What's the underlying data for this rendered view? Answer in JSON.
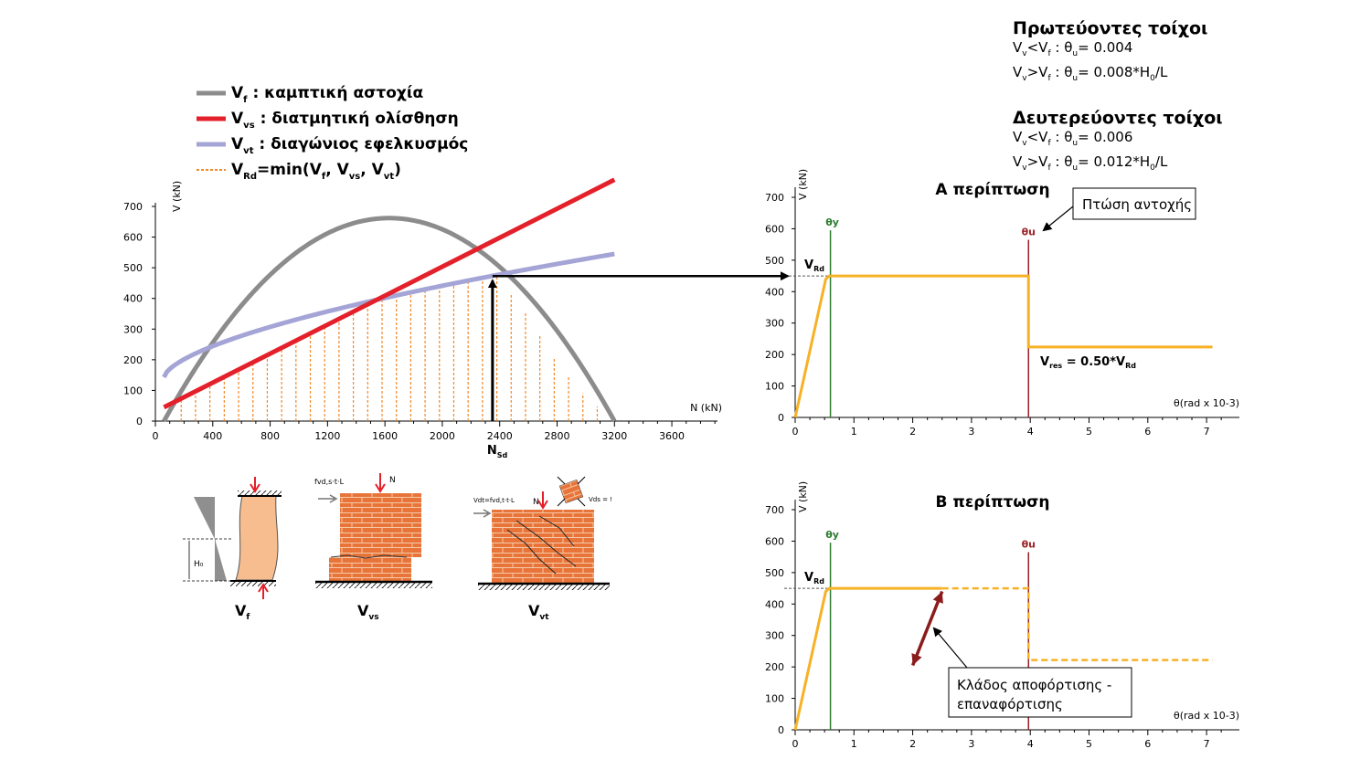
{
  "rules": {
    "primary": {
      "title": "Πρωτεύοντες τοίχοι",
      "rule1": "Vv<Vf : θu= 0.004",
      "rule2": "Vv>Vf : θu= 0.008*H0/L"
    },
    "secondary": {
      "title": "Δευτερεύοντες τοίχοι",
      "rule1": "Vv<Vf : θu= 0.006",
      "rule2": "Vv>Vf : θu= 0.012*H0/L"
    }
  },
  "legend": {
    "items": [
      {
        "symbol": "Vf",
        "text": " : καμπτική αστοχία",
        "color": "#8c8c8c"
      },
      {
        "symbol": "Vvs",
        "text": ": διατμητική ολίσθηση",
        "color": "#e4202a"
      },
      {
        "symbol": "Vvt",
        "text": ": διαγώνιος εφελκυσμός",
        "color": "#a4a4d6"
      },
      {
        "symbol": "VRd",
        "text": "=min(Vf, Vvs, Vvt)",
        "color": "#f08a2a"
      }
    ]
  },
  "colors": {
    "flexure": "#8c8c8c",
    "sliding": "#e4202a",
    "diagonal": "#a4a4d6",
    "vrd_fill": "#f08a2a",
    "capacity_curve": "#f7b125",
    "theta_y": "#2e7d32",
    "theta_u": "#9b2226",
    "brick": "#e8743a",
    "column_fill": "#f7bd8e",
    "unload_arrow": "#8b1c1c"
  },
  "illustrations": {
    "labels": [
      "Vf",
      "Vvs",
      "Vvt"
    ],
    "h0_label": "H₀",
    "n_label": "N",
    "vs_force": "fvd,s·t·L",
    "vt_force": "Vdt=fvd,t·t·L",
    "vds_label": "Vds = !"
  },
  "chart_data": [
    {
      "type": "line",
      "ylabel": "V (kN)",
      "xlabel": "N (kN)",
      "xlim": [
        0,
        3950
      ],
      "ylim": [
        0,
        700
      ],
      "xticks": [
        0,
        400,
        800,
        1200,
        1600,
        2000,
        2400,
        2800,
        3200,
        3600
      ],
      "yticks": [
        0,
        100,
        200,
        300,
        400,
        500,
        600,
        700
      ],
      "grid": false,
      "legend_position": "top-left",
      "series": [
        {
          "name": "Vf : καμπτική αστοχία",
          "x": [
            60,
            200,
            400,
            600,
            800,
            1000,
            1200,
            1400,
            1600,
            1800,
            2000,
            2200,
            2400,
            2600,
            2800,
            3000,
            3200
          ],
          "y": [
            0,
            165,
            340,
            460,
            555,
            615,
            648,
            662,
            662,
            648,
            615,
            555,
            460,
            340,
            190,
            80,
            0
          ]
        },
        {
          "name": "Vvs : διατμητική ολίσθηση",
          "x": [
            60,
            3200
          ],
          "y": [
            45,
            787
          ]
        },
        {
          "name": "Vvt : διαγώνιος εφελκυσμός",
          "x": [
            60,
            400,
            800,
            1200,
            1600,
            2000,
            2400,
            2800,
            3200
          ],
          "y": [
            143,
            215,
            290,
            355,
            405,
            445,
            480,
            515,
            545
          ]
        }
      ],
      "vrd_hatch_x": [
        180,
        280,
        380,
        480,
        580,
        680,
        780,
        880,
        980,
        1080,
        1180,
        1280,
        1380,
        1480,
        1580,
        1680,
        1780,
        1880,
        1980,
        2080,
        2180,
        2280,
        2380,
        2480,
        2580,
        2680,
        2780,
        2880,
        2980,
        3080
      ],
      "annotation": {
        "label": "NSd",
        "x": 2350,
        "v": 470
      }
    },
    {
      "type": "line",
      "title": "Α περίπτωση",
      "ylabel": "V (kN)",
      "xlabel": "θ(rad x 10-3)",
      "xlim": [
        0,
        7.4
      ],
      "ylim": [
        0,
        700
      ],
      "xticks": [
        0,
        1,
        2,
        3,
        4,
        5,
        6,
        7
      ],
      "yticks": [
        0,
        100,
        200,
        300,
        400,
        500,
        600,
        700
      ],
      "series": [
        {
          "name": "capacity",
          "x": [
            0,
            0.52,
            0.58,
            3.97,
            3.97,
            7.1
          ],
          "y": [
            0,
            440,
            450,
            450,
            224,
            224
          ]
        }
      ],
      "theta_y": {
        "label": "θy",
        "x": 0.6
      },
      "theta_u": {
        "label": "θu",
        "x": 3.97
      },
      "vrd_label": "VRd",
      "vrd_value": 450,
      "vres_label": "Vres = 0.50*VRd",
      "callout": "Πτώση αντοχής"
    },
    {
      "type": "line",
      "title": "Β περίπτωση",
      "ylabel": "V (kN)",
      "xlabel": "θ(rad x 10-3)",
      "xlim": [
        0,
        7.4
      ],
      "ylim": [
        0,
        700
      ],
      "xticks": [
        0,
        1,
        2,
        3,
        4,
        5,
        6,
        7
      ],
      "yticks": [
        0,
        100,
        200,
        300,
        400,
        500,
        600,
        700
      ],
      "series": [
        {
          "name": "capacity",
          "x": [
            0,
            0.52,
            0.58,
            2.5
          ],
          "y": [
            0,
            440,
            450,
            450
          ]
        },
        {
          "name": "dashed",
          "x": [
            2.5,
            3.97,
            3.97,
            7.1
          ],
          "y": [
            450,
            450,
            222,
            222
          ]
        }
      ],
      "theta_y": {
        "label": "θy",
        "x": 0.6
      },
      "theta_u": {
        "label": "θu",
        "x": 3.97
      },
      "vrd_label": "VRd",
      "vrd_value": 450,
      "callout_line1": "Κλάδος αποφόρτισης -",
      "callout_line2": "επαναφόρτισης",
      "unload_arrow": {
        "x1": 2.0,
        "y1": 205,
        "x2": 2.5,
        "y2": 440
      }
    }
  ]
}
